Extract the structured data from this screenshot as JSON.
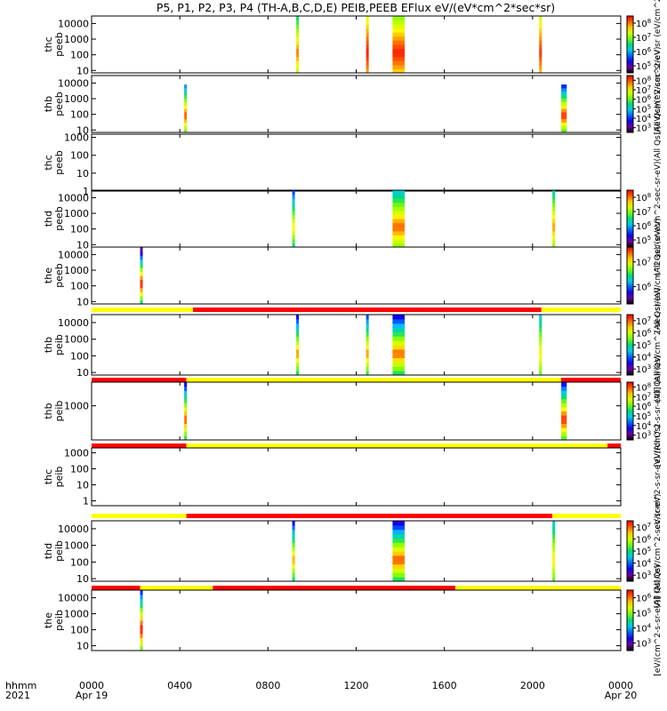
{
  "chart_data": {
    "type": "heatmap",
    "title": "P5, P1, P2, P3, P4 (TH-A,B,C,D,E) PEIB,PEEB EFlux eV/(eV*cm^2*sec*sr)",
    "x_row_labels": [
      "hhmm",
      "2021"
    ],
    "x_ticks": [
      {
        "hour": 0,
        "label": "0000",
        "date": "Apr 19"
      },
      {
        "hour": 4,
        "label": "0400",
        "date": ""
      },
      {
        "hour": 8,
        "label": "0800",
        "date": ""
      },
      {
        "hour": 12,
        "label": "1200",
        "date": ""
      },
      {
        "hour": 16,
        "label": "1600",
        "date": ""
      },
      {
        "hour": 20,
        "label": "2000",
        "date": ""
      },
      {
        "hour": 24,
        "label": "0000",
        "date": "Apr 20"
      }
    ],
    "xlim_hours": [
      0,
      24
    ],
    "colormap": "rainbow",
    "flux_colorbar_axis_label": "eV/(eV*cm^2*sec*sr)",
    "panels": [
      {
        "id": "thc_peeb_top",
        "ylabel": [
          "thc",
          "peeb"
        ],
        "yscale": "log",
        "ylim": [
          7,
          30000
        ],
        "yticks": [
          10,
          100,
          1000,
          10000
        ],
        "yticklabels": [
          "10",
          "100",
          "1000",
          "10000"
        ],
        "colorbar": true,
        "colorbar_exponents": [
          5,
          6,
          7,
          8
        ],
        "colorbar_range": [
          4.5,
          8.5
        ],
        "colorbar_label": "(All Qs)/(eV/cm^2/eV sr (eV/cm^2-sec-sr-eV)",
        "intervals": [
          {
            "start_hour": 9.28,
            "end_hour": 9.33,
            "fmin": 6.4,
            "fmax": 8.0
          },
          {
            "start_hour": 12.45,
            "end_hour": 12.55,
            "fmin": 7.3,
            "fmax": 8.4
          },
          {
            "start_hour": 13.65,
            "end_hour": 14.2,
            "fmin": 6.9,
            "fmax": 8.4
          },
          {
            "start_hour": 20.3,
            "end_hour": 20.35,
            "fmin": 7.2,
            "fmax": 8.3
          }
        ]
      },
      {
        "id": "thb_peeb",
        "ylabel": [
          "thb",
          "peeb"
        ],
        "yscale": "log",
        "ylim": [
          7,
          30000
        ],
        "yticks": [
          10,
          100,
          1000,
          10000
        ],
        "yticklabels": [
          "10",
          "100",
          "1000",
          "10000"
        ],
        "colorbar": true,
        "colorbar_exponents": [
          3,
          4,
          5,
          6,
          7,
          8
        ],
        "colorbar_range": [
          2.5,
          8.5
        ],
        "colorbar_label": "(All Qs)/(eV/cm^2-sec-sr-eV)",
        "intervals": [
          {
            "start_hour": 4.2,
            "end_hour": 4.3,
            "fmin": 4.2,
            "fmax": 8.0,
            "ymax": 8000
          },
          {
            "start_hour": 21.3,
            "end_hour": 21.55,
            "fmin": 3.6,
            "fmax": 8.3,
            "ymax": 8000
          }
        ]
      },
      {
        "id": "thc_peeb",
        "ylabel": [
          "thc",
          "peeb"
        ],
        "yscale": "log",
        "ylim": [
          1,
          1500
        ],
        "yticks": [
          1,
          10,
          100,
          1000
        ],
        "yticklabels": [
          "1",
          "10",
          "100",
          "1000"
        ],
        "colorbar": false,
        "intervals": []
      },
      {
        "id": "thd_peeb",
        "ylabel": [
          "thd",
          "peeb"
        ],
        "yscale": "log",
        "ylim": [
          7,
          30000
        ],
        "yticks": [
          10,
          100,
          1000,
          10000
        ],
        "yticklabels": [
          "10",
          "100",
          "1000",
          "10000"
        ],
        "colorbar": true,
        "colorbar_exponents": [
          5,
          6,
          7,
          8
        ],
        "colorbar_range": [
          4.5,
          8.5
        ],
        "colorbar_label": "(All Qs)/(eV/cm^2-sec-sr-eV)",
        "intervals": [
          {
            "start_hour": 9.1,
            "end_hour": 9.15,
            "fmin": 5.4,
            "fmax": 7.6
          },
          {
            "start_hour": 13.65,
            "end_hour": 14.2,
            "fmin": 6.0,
            "fmax": 8.1
          },
          {
            "start_hour": 20.9,
            "end_hour": 20.95,
            "fmin": 6.2,
            "fmax": 7.9
          }
        ]
      },
      {
        "id": "the_peeb",
        "ylabel": [
          "the",
          "peeb"
        ],
        "yscale": "log",
        "ylim": [
          7,
          30000
        ],
        "yticks": [
          10,
          100,
          1000,
          10000
        ],
        "yticklabels": [
          "10",
          "100",
          "1000",
          "10000"
        ],
        "colorbar": true,
        "colorbar_exponents": [
          6,
          7
        ],
        "colorbar_range": [
          5.3,
          7.6
        ],
        "colorbar_label": "(All Qs)/(eV/cm^2-sec-sr-eV)",
        "intervals": [
          {
            "start_hour": 2.2,
            "end_hour": 2.25,
            "fmin": 5.3,
            "fmax": 7.6
          }
        ]
      },
      {
        "id": "thb_peib",
        "ylabel": [
          "thb",
          "peib"
        ],
        "yscale": "log",
        "ylim": [
          7,
          30000
        ],
        "yticks": [
          10,
          100,
          1000,
          10000
        ],
        "yticklabels": [
          "10",
          "100",
          "1000",
          "10000"
        ],
        "colorbar": true,
        "colorbar_exponents": [
          3,
          4,
          5,
          6,
          7
        ],
        "colorbar_range": [
          2.5,
          7.5
        ],
        "colorbar_label": "(All Qs)/(eV/cm^2-sec-sr-eV)",
        "mode_bar": [
          {
            "start_hour": 0,
            "end_hour": 4.6,
            "state": "yellow"
          },
          {
            "start_hour": 4.6,
            "end_hour": 20.4,
            "state": "red"
          },
          {
            "start_hour": 20.4,
            "end_hour": 24,
            "state": "yellow"
          }
        ],
        "intervals": [
          {
            "start_hour": 9.28,
            "end_hour": 9.33,
            "fmin": 3.3,
            "fmax": 6.8
          },
          {
            "start_hour": 12.45,
            "end_hour": 12.55,
            "fmin": 3.6,
            "fmax": 6.8
          },
          {
            "start_hour": 13.65,
            "end_hour": 14.2,
            "fmin": 3.2,
            "fmax": 7.0
          },
          {
            "start_hour": 20.3,
            "end_hour": 20.35,
            "fmin": 4.4,
            "fmax": 6.4
          }
        ]
      },
      {
        "id": "thb_peib_2",
        "ylabel": [
          "thb",
          "peib"
        ],
        "yscale": "log",
        "ylim": [
          50,
          8000
        ],
        "yticks": [
          1000
        ],
        "yticklabels": [
          "1000"
        ],
        "colorbar": true,
        "colorbar_exponents": [
          3,
          4,
          5,
          6,
          7,
          8
        ],
        "colorbar_range": [
          2.5,
          8.5
        ],
        "colorbar_label": "[eV/(cm^2-s-sr-eV)] (All Qs)",
        "mode_bar": [
          {
            "start_hour": 0,
            "end_hour": 4.3,
            "state": "red"
          },
          {
            "start_hour": 4.3,
            "end_hour": 21.3,
            "state": "yellow"
          },
          {
            "start_hour": 21.3,
            "end_hour": 24,
            "state": "red"
          }
        ],
        "intervals": [
          {
            "start_hour": 4.2,
            "end_hour": 4.3,
            "fmin": 3.3,
            "fmax": 8.0
          },
          {
            "start_hour": 21.3,
            "end_hour": 21.55,
            "fmin": 3.5,
            "fmax": 8.3
          }
        ]
      },
      {
        "id": "thc_peib",
        "ylabel": [
          "thc",
          "peib"
        ],
        "yscale": "log",
        "ylim": [
          0.5,
          2000
        ],
        "yticks": [
          1,
          10,
          100,
          1000
        ],
        "yticklabels": [
          "1",
          "10",
          "100",
          "1000"
        ],
        "colorbar": false,
        "right_label": "eV/(cm^2-s-sr-eV) (All Qs)",
        "mode_bar": [
          {
            "start_hour": 0,
            "end_hour": 4.3,
            "state": "red"
          },
          {
            "start_hour": 4.3,
            "end_hour": 23.4,
            "state": "yellow"
          },
          {
            "start_hour": 23.4,
            "end_hour": 24,
            "state": "red"
          }
        ],
        "intervals": []
      },
      {
        "id": "thd_peib",
        "ylabel": [
          "thd",
          "peib"
        ],
        "yscale": "log",
        "ylim": [
          7,
          30000
        ],
        "yticks": [
          10,
          100,
          1000,
          10000
        ],
        "yticklabels": [
          "10",
          "100",
          "1000",
          "10000"
        ],
        "colorbar": true,
        "colorbar_exponents": [
          3,
          4,
          5,
          6,
          7
        ],
        "colorbar_range": [
          2.5,
          7.5
        ],
        "colorbar_label": "(All Qs)/(eV/cm^2-sec-sr-eV)",
        "mode_bar": [
          {
            "start_hour": 0,
            "end_hour": 4.3,
            "state": "yellow"
          },
          {
            "start_hour": 4.3,
            "end_hour": 20.9,
            "state": "red"
          },
          {
            "start_hour": 20.9,
            "end_hour": 24,
            "state": "yellow"
          }
        ],
        "intervals": [
          {
            "start_hour": 9.1,
            "end_hour": 9.15,
            "fmin": 3.3,
            "fmax": 6.7
          },
          {
            "start_hour": 13.65,
            "end_hour": 14.2,
            "fmin": 3.1,
            "fmax": 7.1
          },
          {
            "start_hour": 20.9,
            "end_hour": 20.95,
            "fmin": 4.4,
            "fmax": 6.4
          }
        ]
      },
      {
        "id": "the_peib",
        "ylabel": [
          "the",
          "peib"
        ],
        "yscale": "log",
        "ylim": [
          5,
          30000
        ],
        "yticks": [
          10,
          100,
          1000,
          10000
        ],
        "yticklabels": [
          "10",
          "100",
          "1000",
          "10000"
        ],
        "colorbar": true,
        "colorbar_exponents": [
          3,
          4,
          5,
          6
        ],
        "colorbar_range": [
          2.5,
          6.5
        ],
        "colorbar_label": "[eV/(cm^2-s-sr-eV)] (All Qs)",
        "mode_bar": [
          {
            "start_hour": 0,
            "end_hour": 2.2,
            "state": "red"
          },
          {
            "start_hour": 2.2,
            "end_hour": 5.5,
            "state": "yellow"
          },
          {
            "start_hour": 5.5,
            "end_hour": 16.5,
            "state": "red"
          },
          {
            "start_hour": 16.5,
            "end_hour": 24,
            "state": "yellow"
          }
        ],
        "intervals": [
          {
            "start_hour": 2.2,
            "end_hour": 2.25,
            "fmin": 3.2,
            "fmax": 6.5
          }
        ]
      }
    ],
    "mode_colors": {
      "yellow": "#ffff00",
      "red": "#ff0000"
    }
  }
}
